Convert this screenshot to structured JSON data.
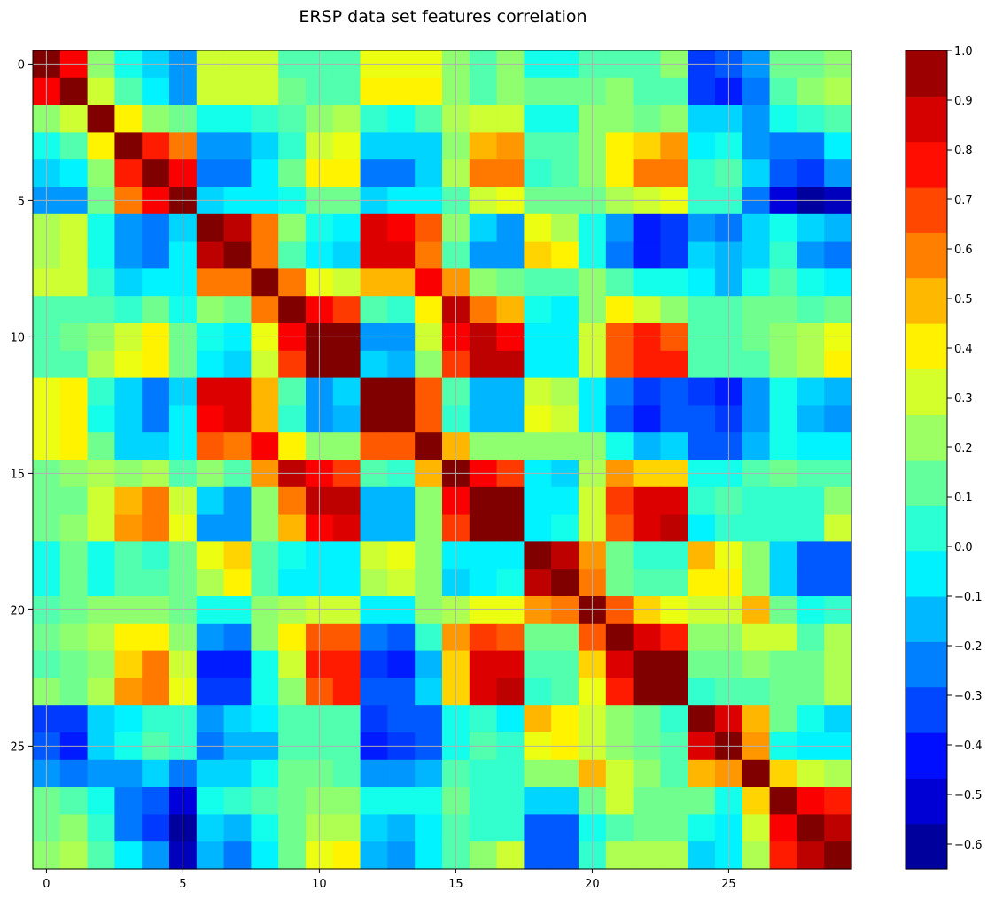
{
  "chart_data": {
    "type": "heatmap",
    "title": "ERSP data set features correlation",
    "xlabel": "",
    "ylabel": "",
    "n": 30,
    "x_ticks": [
      0,
      5,
      10,
      15,
      20,
      25
    ],
    "y_ticks": [
      0,
      5,
      10,
      15,
      20,
      25
    ],
    "x_tick_labels": [
      "0",
      "5",
      "10",
      "15",
      "20",
      "25"
    ],
    "y_tick_labels": [
      "0",
      "5",
      "10",
      "15",
      "20",
      "25"
    ],
    "grid": true,
    "colormap": "jet",
    "color_range": [
      -0.65,
      1.0
    ],
    "colorbar_ticks": [
      1.0,
      0.9,
      0.8,
      0.7,
      0.6,
      0.5,
      0.4,
      0.3,
      0.2,
      0.1,
      0.0,
      -0.1,
      -0.2,
      -0.3,
      -0.4,
      -0.5,
      -0.6
    ],
    "colorbar_tick_labels": [
      "1.0",
      "0.9",
      "0.8",
      "0.7",
      "0.6",
      "0.5",
      "0.4",
      "0.3",
      "0.2",
      "0.1",
      "0.0",
      "−0.1",
      "−0.2",
      "−0.3",
      "−0.4",
      "−0.5",
      "−0.6"
    ],
    "grid_color": "#b0b0b0",
    "values": [
      [
        1.0,
        0.8,
        0.2,
        0.0,
        -0.1,
        -0.2,
        0.3,
        0.3,
        0.3,
        0.1,
        0.1,
        0.1,
        0.35,
        0.35,
        0.35,
        0.2,
        0.1,
        0.2,
        0.0,
        0.0,
        0.1,
        0.1,
        0.1,
        0.2,
        -0.35,
        -0.3,
        -0.2,
        0.15,
        0.15,
        0.2
      ],
      [
        0.8,
        1.0,
        0.3,
        0.1,
        -0.05,
        -0.2,
        0.3,
        0.3,
        0.3,
        0.15,
        0.1,
        0.1,
        0.4,
        0.4,
        0.4,
        0.2,
        0.1,
        0.2,
        0.15,
        0.15,
        0.15,
        0.2,
        0.1,
        0.1,
        -0.35,
        -0.4,
        -0.25,
        0.1,
        0.2,
        0.25
      ],
      [
        0.2,
        0.3,
        1.0,
        0.4,
        0.2,
        0.15,
        0.0,
        0.0,
        0.05,
        0.1,
        0.2,
        0.25,
        0.05,
        0.0,
        0.1,
        0.25,
        0.3,
        0.3,
        0.0,
        0.0,
        0.2,
        0.2,
        0.15,
        0.2,
        -0.1,
        -0.1,
        -0.2,
        0.0,
        0.05,
        0.1
      ],
      [
        0.0,
        0.1,
        0.4,
        1.0,
        0.75,
        0.6,
        -0.2,
        -0.2,
        -0.1,
        0.05,
        0.3,
        0.35,
        -0.1,
        -0.1,
        -0.1,
        0.2,
        0.5,
        0.55,
        0.1,
        0.1,
        0.2,
        0.4,
        0.45,
        0.55,
        -0.05,
        0.0,
        -0.2,
        -0.25,
        -0.25,
        -0.05
      ],
      [
        -0.1,
        -0.05,
        0.2,
        0.75,
        1.0,
        0.8,
        -0.25,
        -0.25,
        -0.05,
        0.15,
        0.4,
        0.4,
        -0.25,
        -0.25,
        -0.1,
        0.25,
        0.6,
        0.6,
        0.05,
        0.1,
        0.2,
        0.4,
        0.6,
        0.6,
        0.05,
        0.1,
        -0.1,
        -0.3,
        -0.35,
        -0.2
      ],
      [
        -0.2,
        -0.2,
        0.15,
        0.6,
        0.8,
        1.0,
        -0.1,
        -0.05,
        -0.05,
        0.0,
        0.15,
        0.15,
        -0.1,
        -0.05,
        -0.05,
        0.1,
        0.3,
        0.35,
        0.15,
        0.15,
        0.15,
        0.25,
        0.3,
        0.35,
        0.05,
        0.05,
        -0.25,
        -0.5,
        -0.6,
        -0.55
      ],
      [
        0.25,
        0.3,
        0.0,
        -0.2,
        -0.25,
        -0.1,
        1.0,
        0.9,
        0.6,
        0.2,
        0.0,
        -0.05,
        0.85,
        0.8,
        0.65,
        0.2,
        -0.1,
        -0.2,
        0.35,
        0.25,
        0.0,
        -0.2,
        -0.4,
        -0.35,
        -0.2,
        -0.25,
        -0.1,
        0.0,
        -0.1,
        -0.15
      ],
      [
        0.25,
        0.3,
        0.0,
        -0.2,
        -0.25,
        -0.05,
        0.9,
        1.0,
        0.6,
        0.1,
        -0.05,
        -0.1,
        0.85,
        0.85,
        0.6,
        0.1,
        -0.2,
        -0.2,
        0.45,
        0.4,
        0.0,
        -0.25,
        -0.4,
        -0.35,
        -0.1,
        -0.15,
        -0.1,
        0.05,
        -0.2,
        -0.25
      ],
      [
        0.3,
        0.3,
        0.05,
        -0.1,
        -0.05,
        -0.05,
        0.6,
        0.6,
        1.0,
        0.6,
        0.35,
        0.3,
        0.5,
        0.5,
        0.8,
        0.55,
        0.2,
        0.15,
        0.1,
        0.1,
        0.2,
        0.1,
        0.0,
        0.0,
        -0.05,
        -0.15,
        0.0,
        0.1,
        0.0,
        -0.05
      ],
      [
        0.1,
        0.1,
        0.1,
        0.05,
        0.15,
        0.0,
        0.2,
        0.15,
        0.6,
        1.0,
        0.8,
        0.7,
        0.1,
        0.05,
        0.4,
        0.9,
        0.6,
        0.5,
        0.0,
        -0.05,
        0.2,
        0.4,
        0.3,
        0.2,
        0.1,
        0.1,
        0.15,
        0.15,
        0.1,
        0.15
      ],
      [
        0.1,
        0.15,
        0.2,
        0.3,
        0.4,
        0.15,
        0.0,
        -0.05,
        0.35,
        0.8,
        1.0,
        1.0,
        -0.2,
        -0.2,
        0.3,
        0.8,
        0.9,
        0.8,
        -0.05,
        -0.05,
        0.3,
        0.65,
        0.75,
        0.65,
        0.1,
        0.1,
        0.15,
        0.2,
        0.25,
        0.35
      ],
      [
        0.1,
        0.1,
        0.25,
        0.35,
        0.4,
        0.15,
        -0.05,
        -0.1,
        0.3,
        0.7,
        1.0,
        1.0,
        -0.1,
        -0.15,
        0.2,
        0.7,
        0.9,
        0.9,
        -0.05,
        -0.05,
        0.3,
        0.65,
        0.75,
        0.75,
        0.1,
        0.1,
        0.1,
        0.2,
        0.25,
        0.4
      ],
      [
        0.35,
        0.4,
        0.05,
        -0.1,
        -0.25,
        -0.1,
        0.85,
        0.85,
        0.5,
        0.1,
        -0.2,
        -0.1,
        1.0,
        1.0,
        0.65,
        0.1,
        -0.15,
        -0.15,
        0.3,
        0.25,
        -0.05,
        -0.25,
        -0.35,
        -0.3,
        -0.35,
        -0.4,
        -0.2,
        0.0,
        -0.1,
        -0.15
      ],
      [
        0.35,
        0.4,
        0.0,
        -0.1,
        -0.25,
        -0.05,
        0.8,
        0.85,
        0.5,
        0.05,
        -0.2,
        -0.15,
        1.0,
        1.0,
        0.65,
        0.05,
        -0.15,
        -0.15,
        0.35,
        0.3,
        -0.05,
        -0.3,
        -0.4,
        -0.3,
        -0.3,
        -0.35,
        -0.2,
        0.0,
        -0.15,
        -0.2
      ],
      [
        0.35,
        0.4,
        0.15,
        -0.1,
        -0.1,
        -0.05,
        0.65,
        0.6,
        0.8,
        0.4,
        0.2,
        0.2,
        0.65,
        0.65,
        1.0,
        0.5,
        0.2,
        0.2,
        0.2,
        0.2,
        0.2,
        0.0,
        -0.15,
        -0.1,
        -0.3,
        -0.3,
        -0.15,
        0.0,
        -0.05,
        -0.05
      ],
      [
        0.15,
        0.2,
        0.25,
        0.2,
        0.25,
        0.1,
        0.2,
        0.1,
        0.55,
        0.9,
        0.8,
        0.7,
        0.1,
        0.05,
        0.5,
        1.0,
        0.8,
        0.7,
        -0.05,
        -0.1,
        0.25,
        0.55,
        0.45,
        0.45,
        0.0,
        0.0,
        0.1,
        0.15,
        0.1,
        0.1
      ],
      [
        0.15,
        0.15,
        0.3,
        0.5,
        0.6,
        0.3,
        -0.1,
        -0.2,
        0.2,
        0.6,
        0.9,
        0.9,
        -0.15,
        -0.15,
        0.2,
        0.8,
        1.0,
        1.0,
        -0.05,
        -0.05,
        0.3,
        0.7,
        0.85,
        0.85,
        0.05,
        0.1,
        0.05,
        0.05,
        0.05,
        0.2
      ],
      [
        0.15,
        0.2,
        0.3,
        0.55,
        0.6,
        0.35,
        -0.2,
        -0.2,
        0.2,
        0.5,
        0.8,
        0.85,
        -0.15,
        -0.15,
        0.2,
        0.7,
        1.0,
        1.0,
        -0.05,
        0.0,
        0.3,
        0.65,
        0.85,
        0.9,
        -0.05,
        0.05,
        0.05,
        0.05,
        0.05,
        0.3
      ],
      [
        0.0,
        0.15,
        0.0,
        0.1,
        0.05,
        0.15,
        0.35,
        0.45,
        0.1,
        0.0,
        -0.05,
        -0.05,
        0.3,
        0.35,
        0.2,
        -0.05,
        -0.05,
        -0.05,
        1.0,
        0.9,
        0.55,
        0.15,
        0.05,
        0.05,
        0.5,
        0.35,
        0.2,
        -0.1,
        -0.3,
        -0.3
      ],
      [
        0.0,
        0.15,
        0.0,
        0.1,
        0.1,
        0.15,
        0.25,
        0.4,
        0.1,
        -0.05,
        -0.05,
        -0.05,
        0.25,
        0.3,
        0.2,
        -0.1,
        -0.05,
        0.0,
        0.9,
        1.0,
        0.6,
        0.15,
        0.1,
        0.1,
        0.4,
        0.4,
        0.2,
        -0.1,
        -0.3,
        -0.3
      ],
      [
        0.1,
        0.15,
        0.2,
        0.2,
        0.2,
        0.15,
        0.0,
        0.0,
        0.2,
        0.25,
        0.3,
        0.3,
        -0.05,
        -0.05,
        0.2,
        0.25,
        0.35,
        0.35,
        0.55,
        0.6,
        1.0,
        0.65,
        0.45,
        0.35,
        0.3,
        0.3,
        0.5,
        0.15,
        0.0,
        0.05
      ],
      [
        0.15,
        0.2,
        0.25,
        0.4,
        0.4,
        0.2,
        -0.2,
        -0.25,
        0.2,
        0.4,
        0.65,
        0.65,
        -0.25,
        -0.3,
        0.05,
        0.55,
        0.7,
        0.65,
        0.15,
        0.15,
        0.65,
        1.0,
        0.85,
        0.75,
        0.2,
        0.2,
        0.3,
        0.3,
        0.1,
        0.25
      ],
      [
        0.1,
        0.15,
        0.2,
        0.45,
        0.6,
        0.3,
        -0.4,
        -0.4,
        0.0,
        0.3,
        0.75,
        0.75,
        -0.35,
        -0.4,
        -0.15,
        0.45,
        0.85,
        0.85,
        0.1,
        0.1,
        0.45,
        0.85,
        1.0,
        1.0,
        0.15,
        0.15,
        0.2,
        0.15,
        0.15,
        0.25
      ],
      [
        0.2,
        0.15,
        0.25,
        0.55,
        0.6,
        0.35,
        -0.35,
        -0.35,
        0.0,
        0.2,
        0.65,
        0.75,
        -0.3,
        -0.3,
        -0.1,
        0.45,
        0.85,
        0.9,
        0.05,
        0.1,
        0.35,
        0.75,
        1.0,
        1.0,
        0.05,
        0.1,
        0.1,
        0.15,
        0.15,
        0.25
      ],
      [
        -0.35,
        -0.35,
        -0.1,
        -0.05,
        0.05,
        0.05,
        -0.2,
        -0.1,
        -0.05,
        0.1,
        0.1,
        0.1,
        -0.35,
        -0.3,
        -0.3,
        0.0,
        0.05,
        -0.05,
        0.5,
        0.4,
        0.3,
        0.2,
        0.15,
        0.05,
        1.0,
        0.85,
        0.5,
        0.15,
        0.0,
        -0.1
      ],
      [
        -0.3,
        -0.4,
        -0.1,
        0.0,
        0.1,
        0.05,
        -0.25,
        -0.15,
        -0.15,
        0.1,
        0.1,
        0.1,
        -0.4,
        -0.35,
        -0.3,
        0.0,
        0.1,
        0.05,
        0.35,
        0.4,
        0.3,
        0.2,
        0.15,
        0.1,
        0.85,
        1.0,
        0.55,
        0.0,
        -0.05,
        -0.05
      ],
      [
        -0.2,
        -0.25,
        -0.2,
        -0.2,
        -0.1,
        -0.25,
        -0.1,
        -0.1,
        0.0,
        0.15,
        0.15,
        0.1,
        -0.2,
        -0.2,
        -0.15,
        0.1,
        0.05,
        0.05,
        0.2,
        0.2,
        0.5,
        0.3,
        0.2,
        0.1,
        0.5,
        0.55,
        1.0,
        0.45,
        0.3,
        0.25
      ],
      [
        0.15,
        0.1,
        0.0,
        -0.25,
        -0.3,
        -0.5,
        0.0,
        0.05,
        0.1,
        0.15,
        0.2,
        0.2,
        0.0,
        0.0,
        0.0,
        0.15,
        0.05,
        0.05,
        -0.1,
        -0.1,
        0.15,
        0.3,
        0.15,
        0.15,
        0.15,
        0.0,
        0.45,
        1.0,
        0.8,
        0.75
      ],
      [
        0.15,
        0.2,
        0.05,
        -0.25,
        -0.35,
        -0.6,
        -0.1,
        -0.15,
        0.0,
        0.15,
        0.25,
        0.25,
        -0.1,
        -0.15,
        -0.05,
        0.1,
        0.05,
        0.05,
        -0.3,
        -0.3,
        0.0,
        0.1,
        0.15,
        0.15,
        0.0,
        -0.05,
        0.3,
        0.8,
        1.0,
        0.9
      ],
      [
        0.2,
        0.25,
        0.1,
        -0.05,
        -0.2,
        -0.55,
        -0.15,
        -0.25,
        -0.05,
        0.15,
        0.35,
        0.4,
        -0.15,
        -0.2,
        -0.05,
        0.1,
        0.2,
        0.3,
        -0.3,
        -0.3,
        0.05,
        0.25,
        0.25,
        0.25,
        -0.1,
        -0.05,
        0.25,
        0.75,
        0.9,
        1.0
      ]
    ]
  }
}
